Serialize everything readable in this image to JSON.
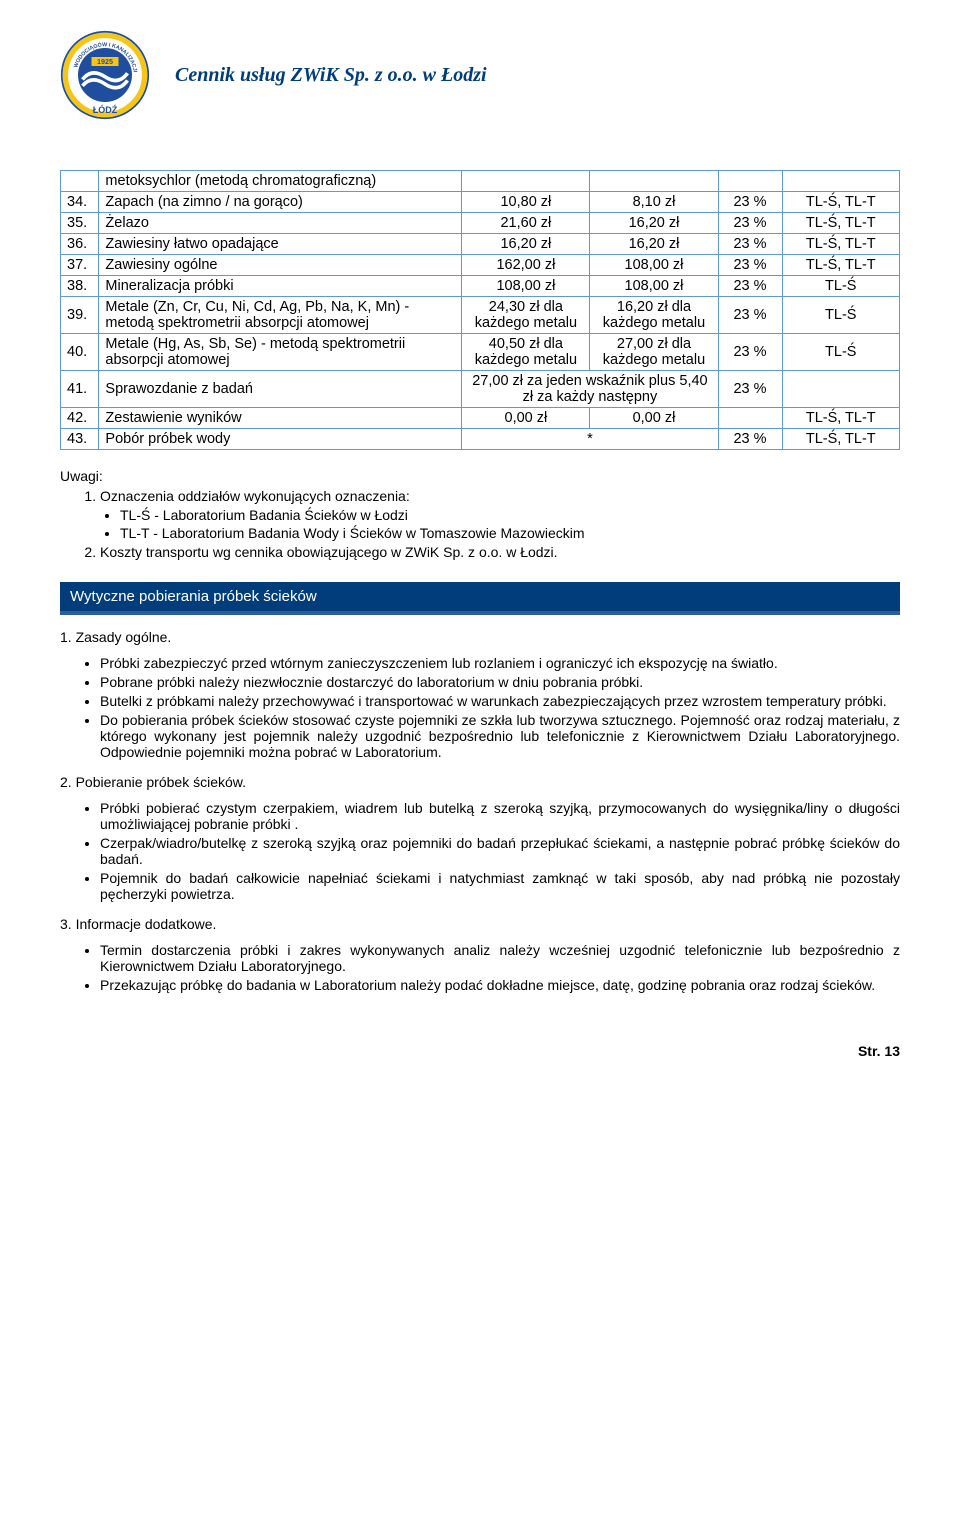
{
  "header": {
    "title": "Cennik usług ZWiK Sp. z o.o. w Łodzi",
    "logo": {
      "outer_color": "#1f4e9e",
      "inner_yellow": "#f5c518",
      "text_top": "ŁÓDŹ",
      "year": "1925"
    }
  },
  "table": {
    "border_color": "#5b9bd5",
    "rows": [
      {
        "num": "",
        "desc": "metoksychlor (metodą chromatograficzną)",
        "v1": "",
        "v2": "",
        "pct": "",
        "lab": ""
      },
      {
        "num": "34.",
        "desc": "Zapach (na zimno / na gorąco)",
        "v1": "10,80 zł",
        "v2": "8,10 zł",
        "pct": "23 %",
        "lab": "TL-Ś, TL-T"
      },
      {
        "num": "35.",
        "desc": "Żelazo",
        "v1": "21,60 zł",
        "v2": "16,20 zł",
        "pct": "23 %",
        "lab": "TL-Ś, TL-T"
      },
      {
        "num": "36.",
        "desc": "Zawiesiny łatwo opadające",
        "v1": "16,20 zł",
        "v2": "16,20 zł",
        "pct": "23 %",
        "lab": "TL-Ś, TL-T"
      },
      {
        "num": "37.",
        "desc": "Zawiesiny ogólne",
        "v1": "162,00 zł",
        "v2": "108,00 zł",
        "pct": "23 %",
        "lab": "TL-Ś, TL-T"
      },
      {
        "num": "38.",
        "desc": "Mineralizacja próbki",
        "v1": "108,00 zł",
        "v2": "108,00 zł",
        "pct": "23 %",
        "lab": "TL-Ś"
      },
      {
        "num": "39.",
        "desc": "Metale (Zn, Cr, Cu, Ni, Cd, Ag, Pb, Na, K, Mn) - metodą spektrometrii absorpcji atomowej",
        "v1": "24,30 zł dla każdego metalu",
        "v2": "16,20 zł dla każdego metalu",
        "pct": "23 %",
        "lab": "TL-Ś"
      },
      {
        "num": "40.",
        "desc": "Metale (Hg, As, Sb, Se) - metodą spektrometrii absorpcji atomowej",
        "v1": "40,50 zł dla każdego metalu",
        "v2": "27,00 zł dla każdego metalu",
        "pct": "23 %",
        "lab": "TL-Ś"
      },
      {
        "num": "41.",
        "desc": "Sprawozdanie z badań",
        "merged": "27,00  zł za jeden wskaźnik plus 5,40 zł  za każdy następny",
        "pct": "23 %",
        "lab": ""
      },
      {
        "num": "42.",
        "desc": "Zestawienie wyników",
        "v1": "0,00 zł",
        "v2": "0,00 zł",
        "pct": "",
        "lab": "TL-Ś, TL-T"
      },
      {
        "num": "43.",
        "desc": "Pobór próbek wody",
        "merged": "*",
        "pct": "23 %",
        "lab": "TL-Ś, TL-T"
      }
    ]
  },
  "uwagi": {
    "heading": "Uwagi:",
    "item1": "Oznaczenia oddziałów wykonujących oznaczenia:",
    "item1_sub": [
      "TL-Ś - Laboratorium Badania Ścieków w Łodzi",
      "TL-T - Laboratorium Badania Wody i Ścieków w Tomaszowie Mazowieckim"
    ],
    "item2": "Koszty transportu wg cennika obowiązującego w ZWiK Sp. z o.o. w Łodzi."
  },
  "banner": "Wytyczne pobierania próbek ścieków",
  "s1": {
    "title": "1. Zasady ogólne.",
    "bullets": [
      "Próbki zabezpieczyć przed wtórnym zanieczyszczeniem lub rozlaniem i ograniczyć ich ekspozycję na światło.",
      "Pobrane próbki należy niezwłocznie dostarczyć do laboratorium w dniu pobrania próbki.",
      "Butelki z próbkami należy przechowywać i transportować w warunkach zabezpieczających przez wzrostem temperatury próbki.",
      "Do pobierania próbek ścieków stosować czyste pojemniki ze szkła lub tworzywa sztucznego. Pojemność oraz rodzaj materiału, z którego wykonany jest pojemnik należy uzgodnić bezpośrednio lub telefonicznie z Kierownictwem Działu Laboratoryjnego. Odpowiednie pojemniki można pobrać w Laboratorium."
    ]
  },
  "s2": {
    "title": "2. Pobieranie próbek ścieków.",
    "bullets": [
      "Próbki pobierać czystym czerpakiem, wiadrem lub butelką z szeroką szyjką, przymocowanych do wysięgnika/liny o długości umożliwiającej pobranie próbki .",
      "Czerpak/wiadro/butelkę z szeroką szyjką oraz pojemniki do badań przepłukać ściekami, a następnie pobrać próbkę ścieków do badań.",
      "Pojemnik do badań całkowicie napełniać ściekami i natychmiast zamknąć w taki sposób, aby nad próbką nie pozostały pęcherzyki powietrza."
    ]
  },
  "s3": {
    "title": "3. Informacje dodatkowe.",
    "bullets": [
      "Termin dostarczenia próbki i zakres wykonywanych analiz należy wcześniej uzgodnić telefonicznie lub bezpośrednio z Kierownictwem Działu Laboratoryjnego.",
      "Przekazując próbkę do badania w Laboratorium należy podać dokładne miejsce, datę, godzinę pobrania oraz rodzaj ścieków."
    ]
  },
  "footer": "Str. 13"
}
